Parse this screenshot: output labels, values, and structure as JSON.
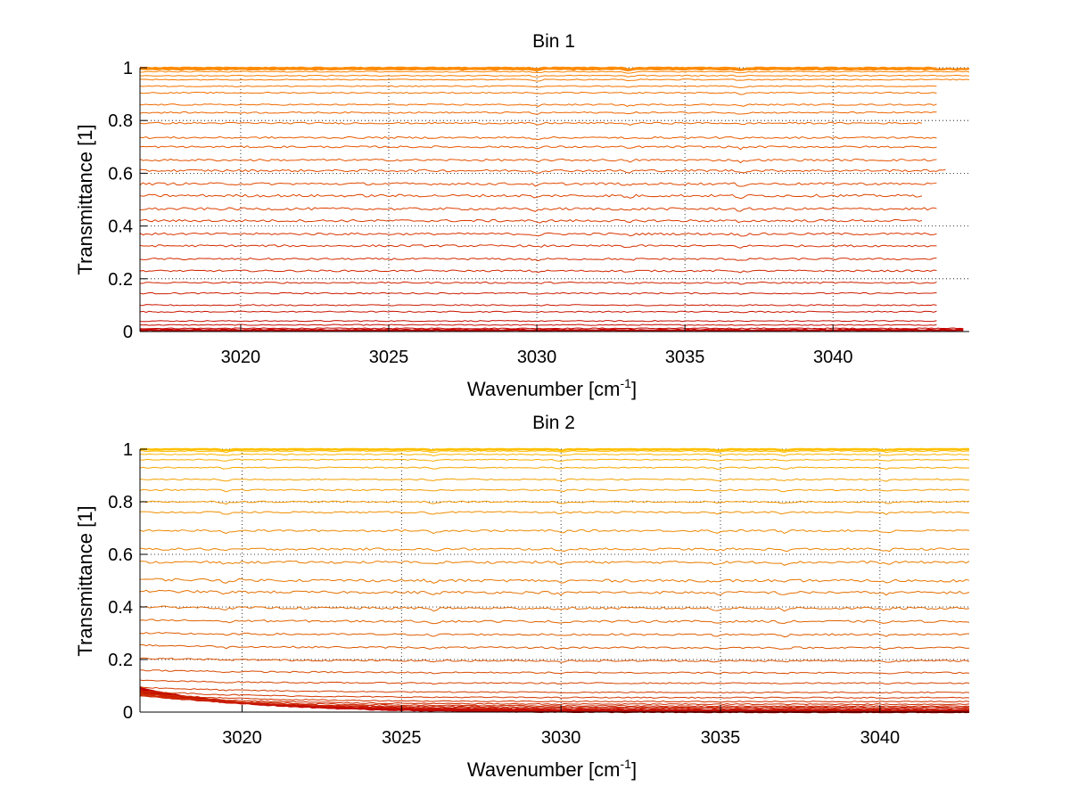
{
  "chart_data": [
    {
      "type": "line",
      "title": "Bin 1",
      "xlabel": {
        "text": "Wavenumber [cm",
        "sup": "-1",
        "close": "]"
      },
      "ylabel": "Transmittance [1]",
      "xlim": [
        3016.6,
        3044.6
      ],
      "ylim": [
        0,
        1
      ],
      "xticks": [
        3020,
        3025,
        3030,
        3035,
        3040
      ],
      "xtick_labels": [
        "3020",
        "3025",
        "3030",
        "3035",
        "3040"
      ],
      "yticks": [
        0,
        0.2,
        0.4,
        0.6,
        0.8,
        1
      ],
      "ytick_labels": [
        "0",
        "0.2",
        "0.4",
        "0.6",
        "0.8",
        "1"
      ],
      "grid": true,
      "color_from": "#c00000",
      "color_to": "#ff8c00",
      "dips": [
        3030.0,
        3033.1,
        3036.9
      ],
      "series_levels": [
        0.005,
        0.012,
        0.025,
        0.04,
        0.075,
        0.1,
        0.145,
        0.185,
        0.23,
        0.275,
        0.325,
        0.37,
        0.42,
        0.465,
        0.515,
        0.56,
        0.61,
        0.65,
        0.7,
        0.735,
        0.79,
        0.83,
        0.86,
        0.905,
        0.93,
        0.955,
        0.97,
        0.985,
        0.995,
        0.999
      ],
      "series_x_end": [
        3044.4,
        3044.4,
        3043.5,
        3043.5,
        3043.5,
        3043.5,
        3043.5,
        3043.5,
        3043.5,
        3043.5,
        3043.5,
        3043.5,
        3043.0,
        3043.5,
        3043.0,
        3043.5,
        3043.8,
        3043.5,
        3043.5,
        3043.5,
        3043.0,
        3043.5,
        3043.5,
        3043.5,
        3043.5,
        3044.6,
        3044.6,
        3044.6,
        3044.6,
        3043.5
      ]
    },
    {
      "type": "line",
      "title": "Bin 2",
      "xlabel": {
        "text": "Wavenumber [cm",
        "sup": "-1",
        "close": "]"
      },
      "ylabel": "Transmittance [1]",
      "xlim": [
        3016.8,
        3042.8
      ],
      "ylim": [
        0,
        1
      ],
      "xticks": [
        3020,
        3025,
        3030,
        3035,
        3040
      ],
      "xtick_labels": [
        "3020",
        "3025",
        "3030",
        "3035",
        "3040"
      ],
      "yticks": [
        0,
        0.2,
        0.4,
        0.6,
        0.8,
        1
      ],
      "ytick_labels": [
        "0",
        "0.2",
        "0.4",
        "0.6",
        "0.8",
        "1"
      ],
      "grid": true,
      "color_from": "#c00000",
      "color_to": "#ffc000",
      "dips": [
        3019.5,
        3026.0,
        3030.0,
        3034.9,
        3037.0,
        3040.2
      ],
      "series_levels": [
        0.0,
        0.003,
        0.006,
        0.01,
        0.014,
        0.018,
        0.023,
        0.03,
        0.04,
        0.055,
        0.075,
        0.11,
        0.15,
        0.195,
        0.245,
        0.295,
        0.345,
        0.395,
        0.455,
        0.5,
        0.57,
        0.62,
        0.69,
        0.76,
        0.8,
        0.845,
        0.885,
        0.93,
        0.96,
        0.98,
        0.993,
        1.0
      ],
      "series_slope": [
        0.09,
        0.08,
        0.07,
        0.06,
        0.05,
        0.045,
        0.04,
        0.035,
        0.03,
        0.025,
        0.02,
        0.01,
        0.01,
        0.01,
        0.01,
        0.005,
        0.005,
        0.005,
        0.005,
        0.005,
        0.0,
        0.0,
        0.0,
        0.0,
        0.0,
        0.0,
        0.0,
        0.0,
        0.0,
        0.0,
        0.0,
        0.0
      ]
    }
  ]
}
